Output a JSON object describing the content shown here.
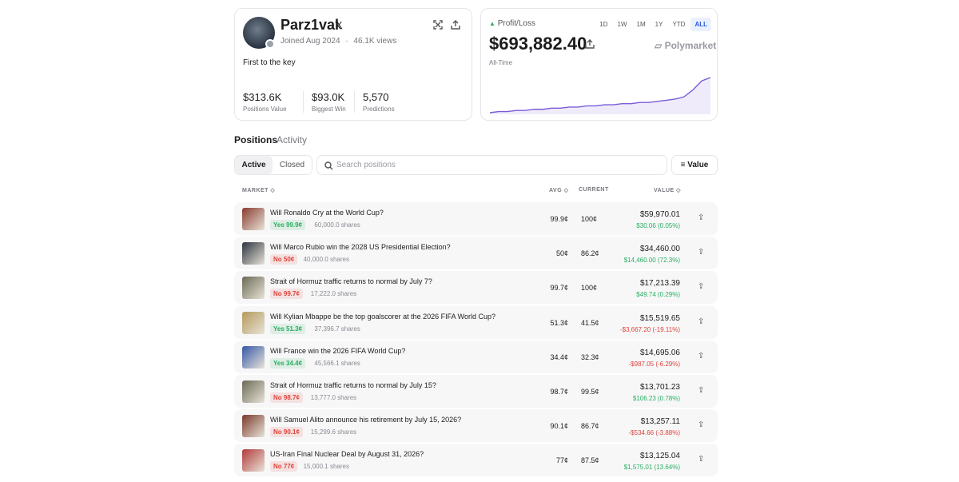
{
  "profile": {
    "name": "Parz1val",
    "joined": "Joined Aug 2024",
    "separator": "·",
    "views": "46.1K views",
    "bio": "First to the key",
    "stats": [
      {
        "value": "$313.6K",
        "label": "Positions Value"
      },
      {
        "value": "$93.0K",
        "label": "Biggest Win"
      },
      {
        "value": "5,570",
        "label": "Predictions"
      }
    ]
  },
  "pnl": {
    "label": "Profit/Loss",
    "ranges": [
      "1D",
      "1W",
      "1M",
      "1Y",
      "YTD",
      "ALL"
    ],
    "active_range": 5,
    "amount": "$693,882.40",
    "brand": "Polymarket",
    "period": "All-Time",
    "sparkline": {
      "color": "#7b5cd6",
      "values": [
        2,
        3,
        3,
        4,
        4,
        5,
        5,
        6,
        6,
        7,
        7,
        8,
        8,
        9,
        9,
        10,
        10,
        11,
        11,
        12,
        13,
        14,
        16,
        22,
        30,
        33
      ]
    }
  },
  "tabs": [
    "Positions",
    "Activity"
  ],
  "filters": [
    "Active",
    "Closed"
  ],
  "search_placeholder": "Search positions",
  "sort_label": "Value",
  "columns": [
    "MARKET",
    "AVG",
    "CURRENT",
    "VALUE"
  ],
  "rows": [
    {
      "title": "Will Ronaldo Cry at the World Cup?",
      "outcome": "Yes 99.9¢",
      "outcome_color": "#27ae60",
      "shares": "60,000.0 shares",
      "avg": "99.9¢",
      "current": "100¢",
      "value": "$59,970.01",
      "change": "$30.06 (0.05%)",
      "change_color": "#27ae60",
      "thumb": "#8a3b2f"
    },
    {
      "title": "Will Marco Rubio win the 2028 US Presidential Election?",
      "outcome": "No 50¢",
      "outcome_color": "#e0433b",
      "shares": "40,000.0 shares",
      "avg": "50¢",
      "current": "86.2¢",
      "value": "$34,460.00",
      "change": "$14,460.00 (72.3%)",
      "change_color": "#27ae60",
      "thumb": "#2c3440"
    },
    {
      "title": "Strait of Hormuz traffic returns to normal by July 7?",
      "outcome": "No 99.7¢",
      "outcome_color": "#e0433b",
      "shares": "17,222.0 shares",
      "avg": "99.7¢",
      "current": "100¢",
      "value": "$17,213.39",
      "change": "$49.74 (0.29%)",
      "change_color": "#27ae60",
      "thumb": "#6b6a55"
    },
    {
      "title": "Will Kylian Mbappe be the top goalscorer at the 2026 FIFA World Cup?",
      "outcome": "Yes 51.3¢",
      "outcome_color": "#27ae60",
      "shares": "37,396.7 shares",
      "avg": "51.3¢",
      "current": "41.5¢",
      "value": "$15,519.65",
      "change": "-$3,667.20 (-19.11%)",
      "change_color": "#e0433b",
      "thumb": "#b49a5a"
    },
    {
      "title": "Will France win the 2026 FIFA World Cup?",
      "outcome": "Yes 34.4¢",
      "outcome_color": "#27ae60",
      "shares": "45,566.1 shares",
      "avg": "34.4¢",
      "current": "32.3¢",
      "value": "$14,695.06",
      "change": "-$987.05 (-6.29%)",
      "change_color": "#e0433b",
      "thumb": "#3557a8"
    },
    {
      "title": "Strait of Hormuz traffic returns to normal by July 15?",
      "outcome": "No 98.7¢",
      "outcome_color": "#e0433b",
      "shares": "13,777.0 shares",
      "avg": "98.7¢",
      "current": "99.5¢",
      "value": "$13,701.23",
      "change": "$106.23 (0.78%)",
      "change_color": "#27ae60",
      "thumb": "#6b6a55"
    },
    {
      "title": "Will Samuel Alito announce his retirement by July 15, 2026?",
      "outcome": "No 90.1¢",
      "outcome_color": "#e0433b",
      "shares": "15,299.6 shares",
      "avg": "90.1¢",
      "current": "86.7¢",
      "value": "$13,257.11",
      "change": "-$534.66 (-3.88%)",
      "change_color": "#e0433b",
      "thumb": "#7a3a2c"
    },
    {
      "title": "US-Iran Final Nuclear Deal by August 31, 2026?",
      "outcome": "No 77¢",
      "outcome_color": "#e0433b",
      "shares": "15,000.1 shares",
      "avg": "77¢",
      "current": "87.5¢",
      "value": "$13,125.04",
      "change": "$1,575.01 (13.64%)",
      "change_color": "#27ae60",
      "thumb": "#b23a3a"
    }
  ]
}
